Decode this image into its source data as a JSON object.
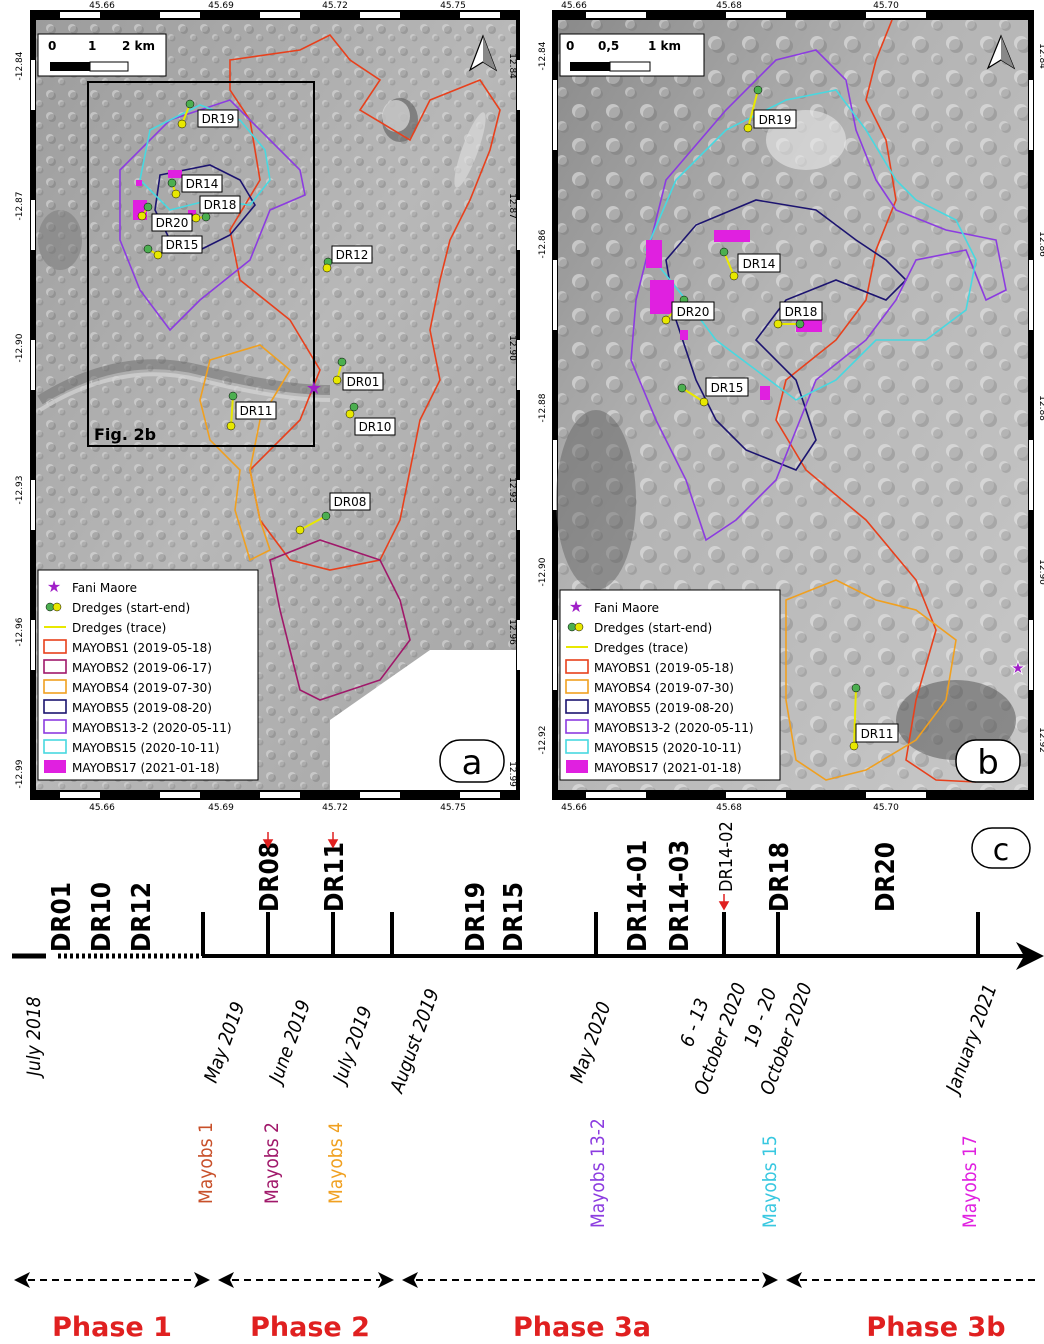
{
  "panel_a": {
    "letter": "a",
    "top_ticks": [
      "45.66",
      "45.69",
      "45.72",
      "45.75"
    ],
    "bottom_ticks": [
      "45.66",
      "45.69",
      "45.72",
      "45.75"
    ],
    "left_ticks": [
      "-12.84",
      "-12.87",
      "-12.90",
      "-12.93",
      "-12.96",
      "-12.99"
    ],
    "right_ticks": [
      "12.84",
      "12.87",
      "12.90",
      "12.93",
      "12.96",
      "12.99"
    ],
    "scale": {
      "zero": "0",
      "mid": "1",
      "end": "2 km"
    },
    "inset_label": "Fig. 2b",
    "dredges": [
      "DR19",
      "DR14",
      "DR18",
      "DR20",
      "DR15",
      "DR12",
      "DR01",
      "DR11",
      "DR10",
      "DR08"
    ],
    "legend": [
      {
        "label": "Fani Maore",
        "kind": "star",
        "color": "#a020c8"
      },
      {
        "label": "Dredges (start-end)",
        "kind": "dots",
        "color": "#4caf50"
      },
      {
        "label": "Dredges (trace)",
        "kind": "line",
        "color": "#e8e800"
      },
      {
        "label": "MAYOBS1 (2019-05-18)",
        "kind": "box",
        "color": "#e8401c"
      },
      {
        "label": "MAYOBS2 (2019-06-17)",
        "kind": "box",
        "color": "#a0186a"
      },
      {
        "label": "MAYOBS4 (2019-07-30)",
        "kind": "box",
        "color": "#f0a020"
      },
      {
        "label": "MAYOBS5 (2019-08-20)",
        "kind": "box",
        "color": "#1c1470"
      },
      {
        "label": "MAYOBS13-2 (2020-05-11)",
        "kind": "box",
        "color": "#8c3ce0"
      },
      {
        "label": "MAYOBS15 (2020-10-11)",
        "kind": "box",
        "color": "#48d8e0"
      },
      {
        "label": "MAYOBS17 (2021-01-18)",
        "kind": "fill",
        "color": "#e020e0"
      }
    ]
  },
  "panel_b": {
    "letter": "b",
    "top_ticks": [
      "45.66",
      "45.68",
      "45.70"
    ],
    "bottom_ticks": [
      "45.66",
      "45.68",
      "45.70"
    ],
    "left_ticks": [
      "-12.84",
      "-12.86",
      "-12.88",
      "-12.90",
      "-12.92"
    ],
    "right_ticks": [
      "12.84",
      "12.86",
      "12.88",
      "12.90",
      "12.92"
    ],
    "scale": {
      "zero": "0",
      "mid": "0,5",
      "end": "1 km"
    },
    "dredges": [
      "DR19",
      "DR14",
      "DR20",
      "DR18",
      "DR15",
      "DR11"
    ],
    "legend": [
      {
        "label": "Fani Maore",
        "kind": "star",
        "color": "#a020c8"
      },
      {
        "label": "Dredges (start-end)",
        "kind": "dots",
        "color": "#4caf50"
      },
      {
        "label": "Dredges (trace)",
        "kind": "line",
        "color": "#e8e800"
      },
      {
        "label": "MAYOBS1 (2019-05-18)",
        "kind": "box",
        "color": "#e8401c"
      },
      {
        "label": "MAYOBS4 (2019-07-30)",
        "kind": "box",
        "color": "#f0a020"
      },
      {
        "label": "MAYOBS5 (2019-08-20)",
        "kind": "box",
        "color": "#1c1470"
      },
      {
        "label": "MAYOBS13-2 (2020-05-11)",
        "kind": "box",
        "color": "#8c3ce0"
      },
      {
        "label": "MAYOBS15 (2020-10-11)",
        "kind": "box",
        "color": "#48d8e0"
      },
      {
        "label": "MAYOBS17 (2021-01-18)",
        "kind": "fill",
        "color": "#e020e0"
      }
    ]
  },
  "timeline": {
    "letter": "c",
    "dredge_groups": {
      "g1": [
        "DR01",
        "DR10",
        "DR12"
      ],
      "g2": "DR08",
      "g3": "DR11",
      "g4": [
        "DR19",
        "DR15"
      ],
      "g5": [
        "DR14-01",
        "DR14-03"
      ],
      "g6": "DR14-02",
      "g7": "DR18",
      "g8": "DR20"
    },
    "dates": [
      "July 2018",
      "May 2019",
      "June 2019",
      "July 2019",
      "August 2019",
      "May 2020",
      "6 - 13",
      "October 2020",
      "19 - 20",
      "October 2020",
      "January 2021"
    ],
    "cruises": [
      {
        "label": "Mayobs 1",
        "color": "#c8502a"
      },
      {
        "label": "Mayobs 2",
        "color": "#a0186a"
      },
      {
        "label": "Mayobs 4",
        "color": "#f0a020"
      },
      {
        "label": "Mayobs 13-2",
        "color": "#8c3ce0"
      },
      {
        "label": "Mayobs 15",
        "color": "#38c8e0"
      },
      {
        "label": "Mayobs 17",
        "color": "#e020e0"
      }
    ],
    "phases": [
      "Phase 1",
      "Phase 2",
      "Phase 3a",
      "Phase 3b"
    ],
    "phase_color": "#e02020"
  }
}
